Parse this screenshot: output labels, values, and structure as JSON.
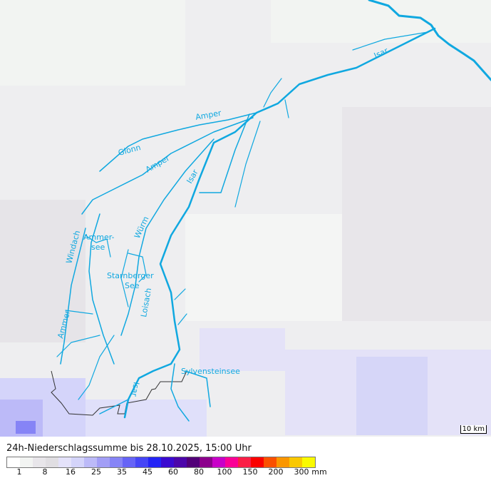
{
  "title": "24h-Niederschlagssumme bis 28.10.2025, 15:00 Uhr",
  "scale_label": "10 km",
  "legend": {
    "colors": [
      "#ffffff",
      "#f2f4f2",
      "#e8e6ea",
      "#e0dee2",
      "#e4e2fa",
      "#d4d4fa",
      "#bcbaf8",
      "#a29ef6",
      "#8684f6",
      "#6664f6",
      "#4646f6",
      "#2424f6",
      "#3a0ad0",
      "#4c06aa",
      "#520078",
      "#8c008c",
      "#c800c8",
      "#fa0096",
      "#fa1e46",
      "#fa0000",
      "#fa5000",
      "#fa9600",
      "#fac800",
      "#fafa00"
    ],
    "ticks": [
      "1",
      "8",
      "16",
      "25",
      "35",
      "45",
      "60",
      "80",
      "100",
      "150",
      "200",
      "300",
      "mm"
    ]
  },
  "map": {
    "river_color": "#10a8e0",
    "labels": {
      "isar_ne": "Isar",
      "amper_n": "Amper",
      "glonn": "Glonn",
      "amper_w": "Amper",
      "isar_c": "Isar",
      "wuerm": "Würm",
      "windach": "Windach",
      "ammersee_1": "Ammer-",
      "ammersee_2": "see",
      "starnberger_1": "Starnberger",
      "starnberger_2": "See",
      "loisach": "Loisach",
      "ammer": "Ammer",
      "sylvensteinsee": "Sylvensteinsee",
      "isar_s": "Isar"
    }
  }
}
